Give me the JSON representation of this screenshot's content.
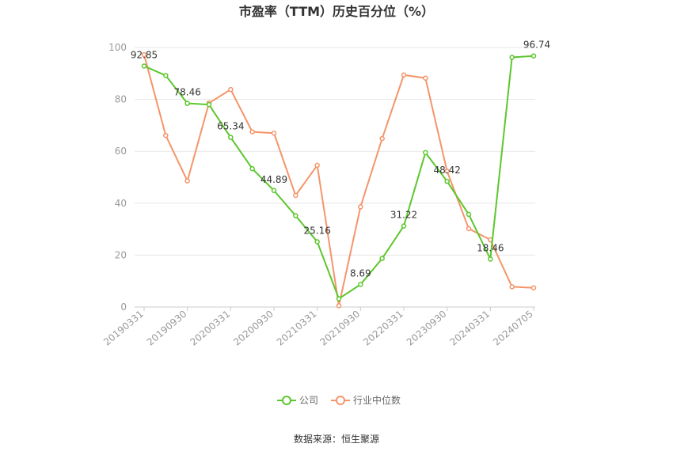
{
  "chart_data": {
    "type": "line",
    "title": "市盈率（TTM）历史百分位（%）",
    "ylim": [
      0,
      100
    ],
    "yticks": [
      0,
      20,
      40,
      60,
      80,
      100
    ],
    "grid": true,
    "x_tick_labels": [
      "20190331",
      "20190930",
      "20200331",
      "20200930",
      "20210331",
      "20210930",
      "20220331",
      "20230930",
      "20240331",
      "20240705"
    ],
    "series": [
      {
        "name": "公司",
        "color": "#5cc72c",
        "values": [
          92.85,
          89.2,
          78.46,
          78.0,
          65.34,
          53.3,
          44.89,
          35.2,
          25.16,
          3.2,
          8.69,
          18.7,
          31.22,
          59.5,
          48.42,
          35.7,
          18.46,
          96.2,
          96.74
        ],
        "labels": [
          "92.85",
          "",
          "78.46",
          "",
          "65.34",
          "",
          "44.89",
          "",
          "25.16",
          "",
          "8.69",
          "",
          "31.22",
          "",
          "48.42",
          "",
          "18.46",
          "",
          "96.74"
        ]
      },
      {
        "name": "行业中位数",
        "color": "#f4956a",
        "values": [
          97.2,
          66.1,
          48.6,
          78.6,
          83.8,
          67.5,
          67.0,
          43.0,
          54.6,
          0.5,
          38.6,
          64.9,
          89.4,
          88.2,
          52.3,
          30.2,
          25.9,
          7.8,
          7.4
        ]
      }
    ]
  },
  "footer": {
    "source": "数据来源：恒生聚源"
  }
}
